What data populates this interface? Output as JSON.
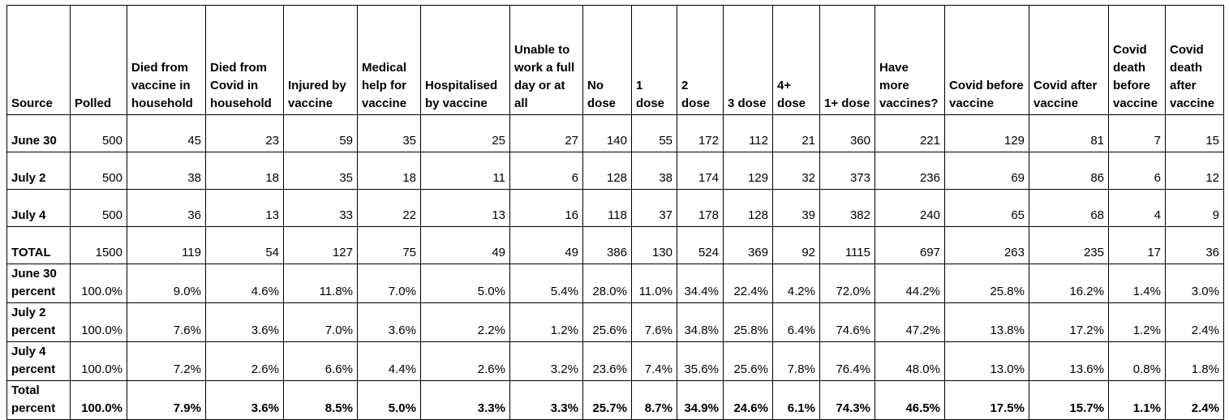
{
  "table": {
    "header": [
      "Source",
      "Polled",
      "Died from vaccine in household",
      "Died from Covid in household",
      "Injured by vaccine",
      "Medical help for vaccine",
      "Hospitalised by vaccine",
      "Unable to work a full day or at all",
      "No dose",
      "1 dose",
      "2 dose",
      "3 dose",
      "4+ dose",
      "1+ dose",
      "Have more vaccines?",
      "Covid before vaccine",
      "Covid after vaccine",
      "Covid death before vaccine",
      "Covid death after vaccine"
    ],
    "rows": [
      [
        "June 30",
        500,
        45,
        23,
        59,
        35,
        25,
        27,
        140,
        55,
        172,
        112,
        21,
        360,
        221,
        129,
        81,
        7,
        15
      ],
      [
        "July 2",
        500,
        38,
        18,
        35,
        18,
        11,
        6,
        128,
        38,
        174,
        129,
        32,
        373,
        236,
        69,
        86,
        6,
        12
      ],
      [
        "July 4",
        500,
        36,
        13,
        33,
        22,
        13,
        16,
        118,
        37,
        178,
        128,
        39,
        382,
        240,
        65,
        68,
        4,
        9
      ],
      [
        "TOTAL",
        1500,
        119,
        54,
        127,
        75,
        49,
        49,
        386,
        130,
        524,
        369,
        92,
        1115,
        697,
        263,
        235,
        17,
        36
      ],
      [
        "June 30 percent",
        "100.0%",
        "9.0%",
        "4.6%",
        "11.8%",
        "7.0%",
        "5.0%",
        "5.4%",
        "28.0%",
        "11.0%",
        "34.4%",
        "22.4%",
        "4.2%",
        "72.0%",
        "44.2%",
        "25.8%",
        "16.2%",
        "1.4%",
        "3.0%"
      ],
      [
        "July 2 percent",
        "100.0%",
        "7.6%",
        "3.6%",
        "7.0%",
        "3.6%",
        "2.2%",
        "1.2%",
        "25.6%",
        "7.6%",
        "34.8%",
        "25.8%",
        "6.4%",
        "74.6%",
        "47.2%",
        "13.8%",
        "17.2%",
        "1.2%",
        "2.4%"
      ],
      [
        "July 4 percent",
        "100.0%",
        "7.2%",
        "2.6%",
        "6.6%",
        "4.4%",
        "2.6%",
        "3.2%",
        "23.6%",
        "7.4%",
        "35.6%",
        "25.6%",
        "7.8%",
        "76.4%",
        "48.0%",
        "13.0%",
        "13.6%",
        "0.8%",
        "1.8%"
      ],
      [
        "Total percent",
        "100.0%",
        "7.9%",
        "3.6%",
        "8.5%",
        "5.0%",
        "3.3%",
        "3.3%",
        "25.7%",
        "8.7%",
        "34.9%",
        "24.6%",
        "6.1%",
        "74.3%",
        "46.5%",
        "17.5%",
        "15.7%",
        "1.1%",
        "2.4%"
      ]
    ]
  }
}
